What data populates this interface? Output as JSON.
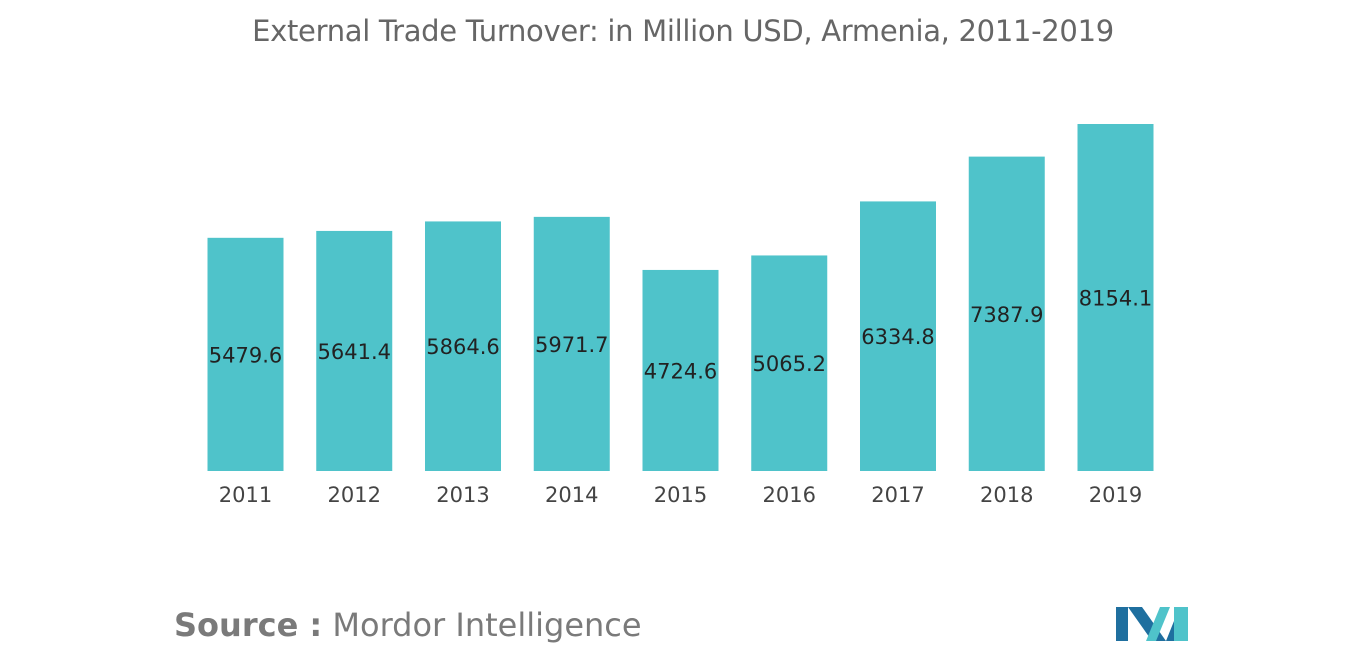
{
  "chart_data": {
    "type": "bar",
    "title": "External Trade Turnover: in Million USD, Armenia, 2011-2019",
    "categories": [
      "2011",
      "2012",
      "2013",
      "2014",
      "2015",
      "2016",
      "2017",
      "2018",
      "2019"
    ],
    "values": [
      5479.6,
      5641.4,
      5864.6,
      5971.7,
      4724.6,
      5065.2,
      6334.8,
      7387.9,
      8154.1
    ],
    "value_labels": [
      "5479.6",
      "5641.4",
      "5864.6",
      "5971.7",
      "4724.6",
      "5065.2",
      "6334.8",
      "7387.9",
      "8154.1"
    ],
    "xlabel": "",
    "ylabel": "",
    "ylim": [
      0,
      8154.1
    ],
    "grid": false,
    "legend": "none",
    "bar_color": "#4fc3ca",
    "label_color": "#222222"
  },
  "footer": {
    "source_label": "Source :",
    "source_name": " Mordor Intelligence"
  },
  "logo": {
    "icon": "mordor-intelligence-logo-icon",
    "colors": [
      "#1f6f9f",
      "#4fc3ca"
    ]
  }
}
